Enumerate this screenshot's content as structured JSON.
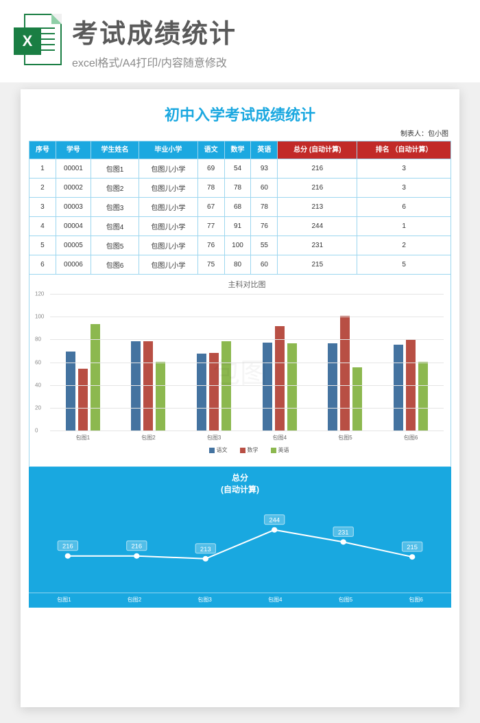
{
  "banner": {
    "excel_letter": "X",
    "title": "考试成绩统计",
    "subtitle": "excel格式/A4打印/内容随意修改"
  },
  "document": {
    "title": "初中入学考试成绩统计",
    "author_label": "制表人：包小图"
  },
  "table": {
    "headers": {
      "seq": "序号",
      "sid": "学号",
      "name": "学生姓名",
      "school": "毕业小学",
      "chinese": "语文",
      "math": "数学",
      "english": "英语",
      "total": "总分\n(自动计算)",
      "rank": "排名\n（自动计算）"
    },
    "rows": [
      {
        "seq": "1",
        "sid": "00001",
        "name": "包图1",
        "school": "包图儿小学",
        "chinese": 69,
        "math": 54,
        "english": 93,
        "total": 216,
        "rank": 3
      },
      {
        "seq": "2",
        "sid": "00002",
        "name": "包图2",
        "school": "包图儿小学",
        "chinese": 78,
        "math": 78,
        "english": 60,
        "total": 216,
        "rank": 3
      },
      {
        "seq": "3",
        "sid": "00003",
        "name": "包图3",
        "school": "包图儿小学",
        "chinese": 67,
        "math": 68,
        "english": 78,
        "total": 213,
        "rank": 6
      },
      {
        "seq": "4",
        "sid": "00004",
        "name": "包图4",
        "school": "包图儿小学",
        "chinese": 77,
        "math": 91,
        "english": 76,
        "total": 244,
        "rank": 1
      },
      {
        "seq": "5",
        "sid": "00005",
        "name": "包图5",
        "school": "包图儿小学",
        "chinese": 76,
        "math": 100,
        "english": 55,
        "total": 231,
        "rank": 2
      },
      {
        "seq": "6",
        "sid": "00006",
        "name": "包图6",
        "school": "包图儿小学",
        "chinese": 75,
        "math": 80,
        "english": 60,
        "total": 215,
        "rank": 5
      }
    ]
  },
  "chart1": {
    "type": "bar",
    "title": "主科对比图",
    "categories": [
      "包图1",
      "包图2",
      "包图3",
      "包图4",
      "包图5",
      "包图6"
    ],
    "series": [
      {
        "name": "语文",
        "color": "#4473a0",
        "values": [
          69,
          78,
          67,
          77,
          76,
          75
        ]
      },
      {
        "name": "数学",
        "color": "#b84f44",
        "values": [
          54,
          78,
          68,
          91,
          100,
          80
        ]
      },
      {
        "name": "英语",
        "color": "#8cb84f",
        "values": [
          93,
          60,
          78,
          76,
          55,
          60
        ]
      }
    ],
    "ylim": [
      0,
      120
    ],
    "ytick_step": 20,
    "grid_color": "#e5e5e5",
    "background": "#ffffff",
    "label_fontsize": 8
  },
  "chart2": {
    "type": "line",
    "title_line1": "总分",
    "title_line2": "(自动计算)",
    "categories": [
      "包图1",
      "包图2",
      "包图3",
      "包图4",
      "包图5",
      "包图6"
    ],
    "values": [
      216,
      216,
      213,
      244,
      231,
      215
    ],
    "ylim": [
      190,
      260
    ],
    "line_color": "#ffffff",
    "marker_color": "#ffffff",
    "background": "#19a8e0",
    "label_fontsize": 8
  },
  "watermark": "包图"
}
